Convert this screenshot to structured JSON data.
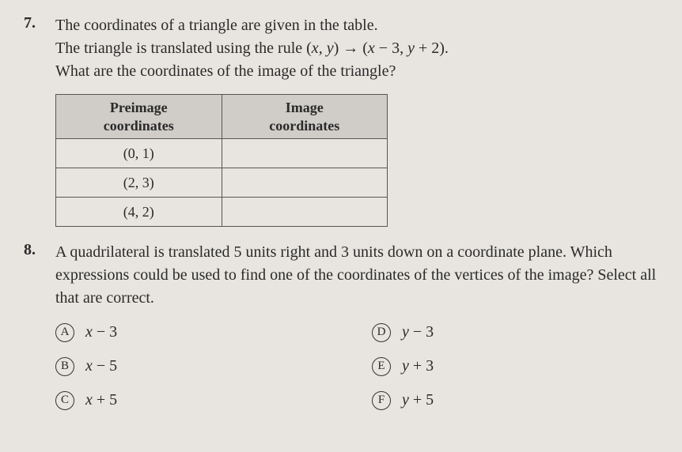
{
  "q7": {
    "number": "7.",
    "line1": "The coordinates of a triangle are given in the table.",
    "line2a": "The triangle is translated using the rule (",
    "line2_x": "x",
    "line2_comma": ", ",
    "line2_y": "y",
    "line2_arrow": ") → (",
    "line2_x2": "x",
    "line2_minus": " − 3, ",
    "line2_y2": "y",
    "line2_plus": " + 2).",
    "line3": "What are the coordinates of the image of the triangle?",
    "table": {
      "header1_a": "Preimage",
      "header1_b": "coordinates",
      "header2_a": "Image",
      "header2_b": "coordinates",
      "rows": [
        {
          "preimage": "(0, 1)",
          "image": ""
        },
        {
          "preimage": "(2, 3)",
          "image": ""
        },
        {
          "preimage": "(4, 2)",
          "image": ""
        }
      ]
    }
  },
  "q8": {
    "number": "8.",
    "text": "A quadrilateral is translated 5 units right and 3 units down on a coordinate plane. Which expressions could be used to find one of the coordinates of the vertices of the image? Select all that are correct.",
    "options": [
      {
        "letter": "A",
        "var": "x",
        "rest": " − 3"
      },
      {
        "letter": "D",
        "var": "y",
        "rest": " − 3"
      },
      {
        "letter": "B",
        "var": "x",
        "rest": " − 5"
      },
      {
        "letter": "E",
        "var": "y",
        "rest": " + 3"
      },
      {
        "letter": "C",
        "var": "x",
        "rest": " + 5"
      },
      {
        "letter": "F",
        "var": "y",
        "rest": " + 5"
      }
    ]
  },
  "style": {
    "background": "#e8e5e0",
    "text_color": "#2a2a2a",
    "table_header_bg": "#d0cdc8",
    "border_color": "#555555",
    "font_size_body": 20,
    "font_size_table": 18,
    "circle_border": "#323232"
  }
}
